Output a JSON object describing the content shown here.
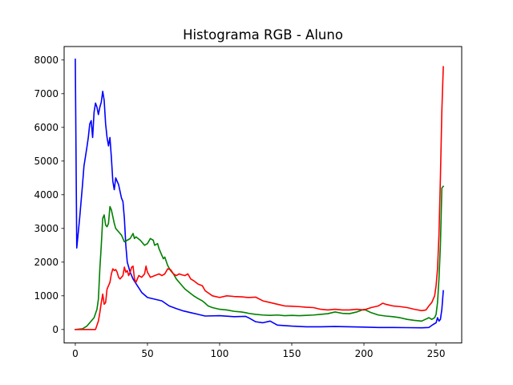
{
  "chart_data": {
    "type": "line",
    "title": "Histograma RGB - Aluno",
    "xlabel": "",
    "ylabel": "",
    "xlim": [
      -7.75,
      267.75
    ],
    "ylim": [
      -400,
      8400
    ],
    "xticks": [
      0,
      50,
      100,
      150,
      200,
      250
    ],
    "yticks": [
      0,
      1000,
      2000,
      3000,
      4000,
      5000,
      6000,
      7000,
      8000
    ],
    "grid": false,
    "legend": "none",
    "series": [
      {
        "color": "#0000ff",
        "points": [
          [
            0,
            8020
          ],
          [
            1,
            2420
          ],
          [
            3,
            3300
          ],
          [
            5,
            4300
          ],
          [
            6,
            4850
          ],
          [
            8,
            5400
          ],
          [
            9,
            5700
          ],
          [
            10,
            6100
          ],
          [
            11,
            6200
          ],
          [
            12,
            5700
          ],
          [
            13,
            6450
          ],
          [
            14,
            6720
          ],
          [
            15,
            6600
          ],
          [
            16,
            6380
          ],
          [
            17,
            6600
          ],
          [
            18,
            6750
          ],
          [
            19,
            7070
          ],
          [
            20,
            6800
          ],
          [
            21,
            6100
          ],
          [
            22,
            5700
          ],
          [
            23,
            5450
          ],
          [
            24,
            5700
          ],
          [
            25,
            5100
          ],
          [
            26,
            4400
          ],
          [
            27,
            4150
          ],
          [
            28,
            4500
          ],
          [
            29,
            4400
          ],
          [
            30,
            4300
          ],
          [
            32,
            3900
          ],
          [
            33,
            3800
          ],
          [
            34,
            3300
          ],
          [
            35,
            2500
          ],
          [
            36,
            2000
          ],
          [
            38,
            1700
          ],
          [
            40,
            1500
          ],
          [
            43,
            1300
          ],
          [
            46,
            1100
          ],
          [
            50,
            950
          ],
          [
            55,
            900
          ],
          [
            60,
            850
          ],
          [
            65,
            700
          ],
          [
            70,
            620
          ],
          [
            75,
            550
          ],
          [
            80,
            500
          ],
          [
            85,
            450
          ],
          [
            90,
            400
          ],
          [
            100,
            410
          ],
          [
            110,
            380
          ],
          [
            118,
            390
          ],
          [
            120,
            350
          ],
          [
            125,
            230
          ],
          [
            130,
            200
          ],
          [
            135,
            250
          ],
          [
            140,
            130
          ],
          [
            150,
            100
          ],
          [
            160,
            80
          ],
          [
            170,
            80
          ],
          [
            180,
            90
          ],
          [
            190,
            80
          ],
          [
            200,
            70
          ],
          [
            210,
            60
          ],
          [
            220,
            60
          ],
          [
            230,
            55
          ],
          [
            240,
            50
          ],
          [
            245,
            60
          ],
          [
            248,
            150
          ],
          [
            250,
            200
          ],
          [
            251,
            350
          ],
          [
            252,
            250
          ],
          [
            253,
            300
          ],
          [
            254,
            600
          ],
          [
            255,
            1150
          ]
        ]
      },
      {
        "color": "#008000",
        "points": [
          [
            0,
            0
          ],
          [
            5,
            20
          ],
          [
            8,
            100
          ],
          [
            10,
            200
          ],
          [
            13,
            350
          ],
          [
            15,
            600
          ],
          [
            16,
            900
          ],
          [
            17,
            1800
          ],
          [
            18,
            2500
          ],
          [
            19,
            3300
          ],
          [
            20,
            3400
          ],
          [
            21,
            3100
          ],
          [
            22,
            3050
          ],
          [
            23,
            3150
          ],
          [
            24,
            3650
          ],
          [
            25,
            3550
          ],
          [
            26,
            3350
          ],
          [
            27,
            3150
          ],
          [
            28,
            3000
          ],
          [
            30,
            2900
          ],
          [
            32,
            2800
          ],
          [
            34,
            2600
          ],
          [
            36,
            2650
          ],
          [
            38,
            2700
          ],
          [
            40,
            2850
          ],
          [
            41,
            2700
          ],
          [
            42,
            2750
          ],
          [
            45,
            2650
          ],
          [
            48,
            2500
          ],
          [
            50,
            2550
          ],
          [
            52,
            2700
          ],
          [
            54,
            2650
          ],
          [
            55,
            2500
          ],
          [
            57,
            2550
          ],
          [
            58,
            2400
          ],
          [
            60,
            2200
          ],
          [
            61,
            2100
          ],
          [
            62,
            2150
          ],
          [
            64,
            1900
          ],
          [
            66,
            1750
          ],
          [
            68,
            1650
          ],
          [
            70,
            1500
          ],
          [
            73,
            1350
          ],
          [
            76,
            1200
          ],
          [
            79,
            1100
          ],
          [
            82,
            1000
          ],
          [
            85,
            920
          ],
          [
            88,
            850
          ],
          [
            90,
            780
          ],
          [
            92,
            700
          ],
          [
            95,
            650
          ],
          [
            100,
            600
          ],
          [
            105,
            580
          ],
          [
            110,
            540
          ],
          [
            115,
            520
          ],
          [
            118,
            500
          ],
          [
            120,
            480
          ],
          [
            125,
            450
          ],
          [
            130,
            430
          ],
          [
            135,
            420
          ],
          [
            140,
            430
          ],
          [
            145,
            410
          ],
          [
            150,
            420
          ],
          [
            155,
            410
          ],
          [
            160,
            420
          ],
          [
            165,
            430
          ],
          [
            170,
            450
          ],
          [
            175,
            470
          ],
          [
            180,
            520
          ],
          [
            185,
            480
          ],
          [
            190,
            470
          ],
          [
            195,
            520
          ],
          [
            200,
            600
          ],
          [
            202,
            560
          ],
          [
            205,
            500
          ],
          [
            210,
            430
          ],
          [
            215,
            400
          ],
          [
            220,
            380
          ],
          [
            225,
            350
          ],
          [
            230,
            300
          ],
          [
            235,
            270
          ],
          [
            240,
            250
          ],
          [
            245,
            350
          ],
          [
            247,
            300
          ],
          [
            249,
            350
          ],
          [
            250,
            450
          ],
          [
            251,
            800
          ],
          [
            252,
            1500
          ],
          [
            253,
            2500
          ],
          [
            254,
            4200
          ],
          [
            255,
            4250
          ]
        ]
      },
      {
        "color": "#ff0000",
        "points": [
          [
            0,
            0
          ],
          [
            5,
            0
          ],
          [
            10,
            0
          ],
          [
            14,
            0
          ],
          [
            16,
            250
          ],
          [
            17,
            500
          ],
          [
            18,
            800
          ],
          [
            19,
            1050
          ],
          [
            20,
            750
          ],
          [
            21,
            800
          ],
          [
            22,
            1200
          ],
          [
            24,
            1400
          ],
          [
            25,
            1650
          ],
          [
            26,
            1800
          ],
          [
            27,
            1750
          ],
          [
            28,
            1780
          ],
          [
            29,
            1700
          ],
          [
            30,
            1550
          ],
          [
            31,
            1500
          ],
          [
            32,
            1550
          ],
          [
            33,
            1600
          ],
          [
            34,
            1850
          ],
          [
            35,
            1700
          ],
          [
            36,
            1750
          ],
          [
            37,
            1600
          ],
          [
            38,
            1700
          ],
          [
            39,
            1850
          ],
          [
            40,
            1880
          ],
          [
            41,
            1500
          ],
          [
            42,
            1400
          ],
          [
            44,
            1600
          ],
          [
            46,
            1550
          ],
          [
            48,
            1650
          ],
          [
            49,
            1880
          ],
          [
            50,
            1700
          ],
          [
            52,
            1550
          ],
          [
            55,
            1600
          ],
          [
            58,
            1650
          ],
          [
            60,
            1600
          ],
          [
            62,
            1650
          ],
          [
            64,
            1800
          ],
          [
            66,
            1780
          ],
          [
            68,
            1650
          ],
          [
            70,
            1600
          ],
          [
            72,
            1650
          ],
          [
            74,
            1620
          ],
          [
            76,
            1600
          ],
          [
            78,
            1650
          ],
          [
            80,
            1500
          ],
          [
            82,
            1450
          ],
          [
            85,
            1350
          ],
          [
            88,
            1300
          ],
          [
            90,
            1150
          ],
          [
            95,
            1000
          ],
          [
            100,
            950
          ],
          [
            105,
            1000
          ],
          [
            110,
            980
          ],
          [
            115,
            970
          ],
          [
            120,
            950
          ],
          [
            125,
            960
          ],
          [
            130,
            850
          ],
          [
            135,
            800
          ],
          [
            140,
            750
          ],
          [
            145,
            700
          ],
          [
            150,
            690
          ],
          [
            155,
            680
          ],
          [
            160,
            660
          ],
          [
            165,
            650
          ],
          [
            170,
            600
          ],
          [
            175,
            580
          ],
          [
            180,
            600
          ],
          [
            185,
            580
          ],
          [
            190,
            580
          ],
          [
            195,
            600
          ],
          [
            200,
            580
          ],
          [
            205,
            650
          ],
          [
            210,
            700
          ],
          [
            213,
            780
          ],
          [
            215,
            750
          ],
          [
            220,
            700
          ],
          [
            225,
            680
          ],
          [
            230,
            650
          ],
          [
            235,
            600
          ],
          [
            240,
            560
          ],
          [
            243,
            580
          ],
          [
            245,
            700
          ],
          [
            247,
            800
          ],
          [
            249,
            1000
          ],
          [
            250,
            1300
          ],
          [
            251,
            1800
          ],
          [
            252,
            2800
          ],
          [
            253,
            4500
          ],
          [
            254,
            6500
          ],
          [
            255,
            7800
          ]
        ]
      }
    ]
  }
}
